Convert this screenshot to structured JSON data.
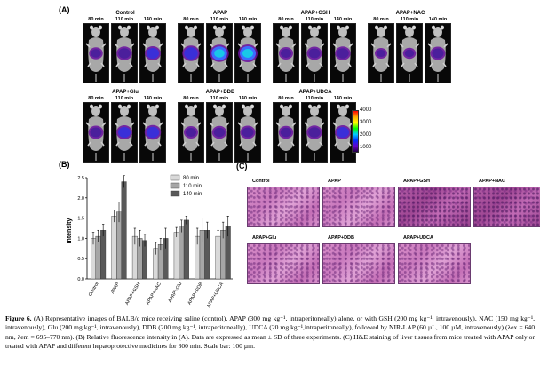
{
  "panel_a": {
    "label": "(A)",
    "time_labels": [
      "80 min",
      "110 min",
      "140 min"
    ],
    "groups": [
      {
        "title": "Control",
        "intensity": [
          0.35,
          0.55,
          0.6
        ]
      },
      {
        "title": "APAP",
        "intensity": [
          0.75,
          0.95,
          1.0
        ]
      },
      {
        "title": "APAP+GSH",
        "intensity": [
          0.4,
          0.5,
          0.55
        ]
      },
      {
        "title": "APAP+NAC",
        "intensity": [
          0.2,
          0.25,
          0.5
        ]
      },
      {
        "title": "APAP+Glu",
        "intensity": [
          0.5,
          0.6,
          0.65
        ]
      },
      {
        "title": "APAP+DDB",
        "intensity": [
          0.4,
          0.45,
          0.5
        ]
      },
      {
        "title": "APAP+UDCA",
        "intensity": [
          0.45,
          0.55,
          0.6
        ]
      }
    ],
    "colorbar_ticks": [
      "4000",
      "3000",
      "2000",
      "1000"
    ],
    "colorbar_colors": [
      "#ff0000",
      "#ffaa00",
      "#ffff00",
      "#00ff00",
      "#00ccff",
      "#0033ff",
      "#6600cc",
      "#220044"
    ]
  },
  "panel_b": {
    "label": "(B)",
    "chart_data": {
      "type": "bar",
      "ylabel": "Intensity",
      "ylim": [
        0,
        2.5
      ],
      "yticks": [
        "0.0",
        "0.5",
        "1.0",
        "1.5",
        "2.0",
        "2.5"
      ],
      "categories": [
        "Control",
        "APAP",
        "APAP+GSH",
        "APAP+NAC",
        "APAP+Glu",
        "APAP+DDB",
        "APAP+UDCA"
      ],
      "series": [
        {
          "name": "80 min",
          "color": "#d9d9d9",
          "values": [
            1.0,
            1.55,
            1.05,
            0.75,
            1.15,
            1.05,
            1.05
          ],
          "errors": [
            0.15,
            0.15,
            0.2,
            0.15,
            0.12,
            0.2,
            0.15
          ]
        },
        {
          "name": "110 min",
          "color": "#a6a6a6",
          "values": [
            1.05,
            1.65,
            1.0,
            0.85,
            1.3,
            1.2,
            1.2
          ],
          "errors": [
            0.15,
            0.25,
            0.2,
            0.15,
            0.15,
            0.3,
            0.2
          ]
        },
        {
          "name": "140 min",
          "color": "#595959",
          "values": [
            1.2,
            2.4,
            0.95,
            1.0,
            1.45,
            1.2,
            1.3
          ],
          "errors": [
            0.15,
            0.15,
            0.15,
            0.25,
            0.1,
            0.2,
            0.25
          ]
        }
      ],
      "legend_position": "top-right"
    }
  },
  "panel_c": {
    "label": "(C)",
    "tiles": [
      {
        "title": "Control",
        "tone": "light"
      },
      {
        "title": "APAP",
        "tone": "light"
      },
      {
        "title": "APAP+GSH",
        "tone": "dark"
      },
      {
        "title": "APAP+NAC",
        "tone": "dark"
      },
      {
        "title": "APAP+Glu",
        "tone": "light"
      },
      {
        "title": "APAP+DDB",
        "tone": "light"
      },
      {
        "title": "APAP+UDCA",
        "tone": "light"
      }
    ]
  },
  "caption": {
    "figure_label": "Figure 6.",
    "text": "(A) Representative images of BALB/c mice receiving saline (control), APAP (300 mg kg⁻¹, intraperitoneally) alone, or with GSH (200 mg kg⁻¹, intravenously), NAC (150 mg kg⁻¹, intravenously), Glu (200 mg kg⁻¹, intravenously), DDB (200 mg kg⁻¹, intraperitoneally), UDCA (20 mg kg⁻¹,intraperitoneally), followed by NIR-LAP (60 µL, 100 µM, intravenously) (λex = 640 nm, λem = 695–770 nm). (B) Relative fluorescence intensity in (A). Data are expressed as mean ± SD of three experiments. (C) H&E staining of liver tissues from mice treated with APAP only or treated with APAP and different hepatoprotective medicines for 300 min. Scale bar: 100 µm."
  }
}
